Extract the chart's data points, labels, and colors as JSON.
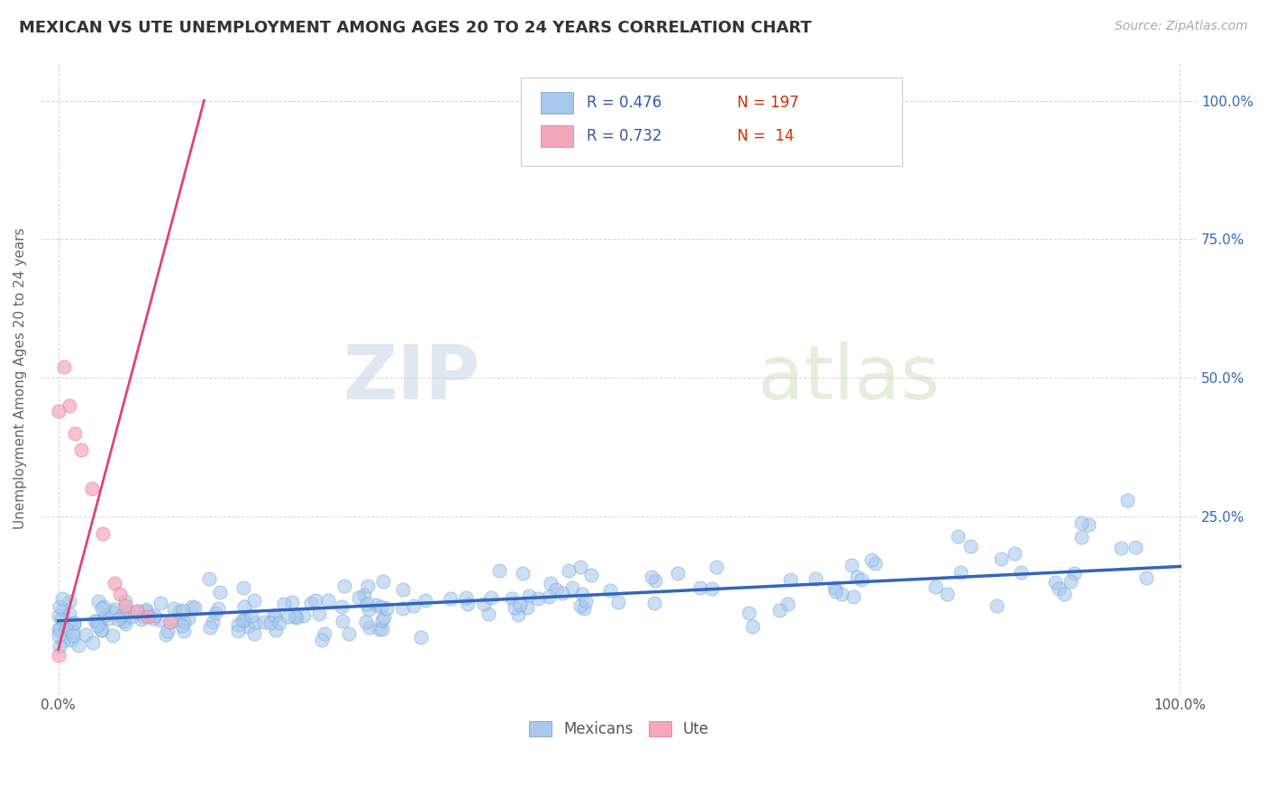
{
  "title": "MEXICAN VS UTE UNEMPLOYMENT AMONG AGES 20 TO 24 YEARS CORRELATION CHART",
  "source": "Source: ZipAtlas.com",
  "ylabel": "Unemployment Among Ages 20 to 24 years",
  "legend_blue_r": "R = 0.476",
  "legend_blue_n": "N = 197",
  "legend_pink_r": "R = 0.732",
  "legend_pink_n": "N =  14",
  "legend_blue_label": "Mexicans",
  "legend_pink_label": "Ute",
  "blue_color": "#A8C8EE",
  "blue_edge_color": "#6699CC",
  "pink_color": "#F4A7B9",
  "pink_edge_color": "#E07090",
  "blue_line_color": "#3366BB",
  "pink_line_color": "#DD4477",
  "watermark_zip": "ZIP",
  "watermark_atlas": "atlas",
  "background_color": "#FFFFFF",
  "grid_color": "#CCCCCC",
  "title_color": "#333333",
  "axis_label_color": "#666666",
  "legend_r_color": "#3355AA",
  "legend_n_color": "#CC3300",
  "right_tick_color": "#3366BB"
}
